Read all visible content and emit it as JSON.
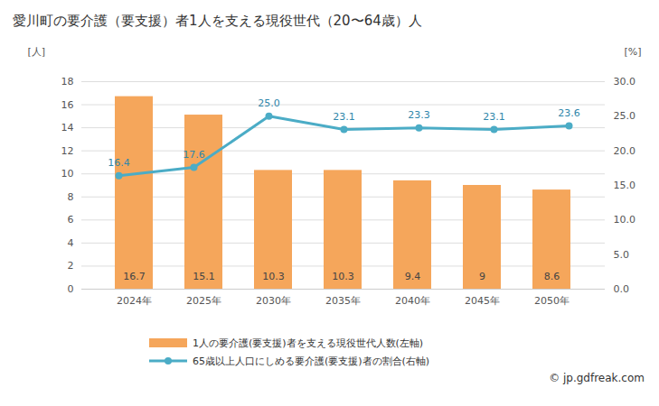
{
  "chart_data": {
    "type": "bar",
    "title": "愛川町の要介護（要支援）者1人を支える現役世代（20〜64歳）人",
    "categories": [
      "2024年",
      "2025年",
      "2030年",
      "2035年",
      "2040年",
      "2045年",
      "2050年"
    ],
    "series": [
      {
        "name": "1人の要介護(要支援)者を支える現役世代人数(左軸)",
        "type": "bar",
        "color": "#f5a65b",
        "values": [
          16.7,
          15.1,
          10.3,
          10.3,
          9.4,
          9,
          8.6
        ]
      },
      {
        "name": "65歳以上人口にしめる要介護(要支援)者の割合(右軸)",
        "type": "line",
        "axis": "y2",
        "color": "#4bacc6",
        "marker": "circle",
        "values": [
          16.4,
          17.6,
          25.0,
          23.1,
          23.3,
          23.1,
          23.6
        ],
        "value_labels": [
          "16.4",
          "17.6",
          "25.0",
          "23.1",
          "23.3",
          "23.1",
          "23.6"
        ]
      }
    ],
    "y_label": "[人]",
    "y2_label": "[%]",
    "ylim": [
      0,
      18
    ],
    "yticks": [
      0,
      2,
      4,
      6,
      8,
      10,
      12,
      14,
      16,
      18
    ],
    "y2lim": [
      0,
      30
    ],
    "y2ticks": [
      {
        "value": 0,
        "label": "0.0"
      },
      {
        "value": 5,
        "label": "5.0"
      },
      {
        "value": 10,
        "label": "10.0"
      },
      {
        "value": 15,
        "label": "15.0"
      },
      {
        "value": 20,
        "label": "20.0"
      },
      {
        "value": 25,
        "label": "25.0"
      },
      {
        "value": 30,
        "label": "30.0"
      }
    ],
    "grid": true,
    "data_labels": true,
    "legend": "bottom",
    "source": "© jp.gdfreak.com"
  }
}
